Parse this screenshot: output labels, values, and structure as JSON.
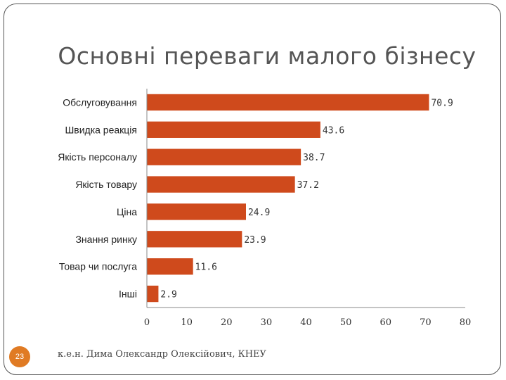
{
  "slide": {
    "title": "Основні переваги малого бізнесу",
    "page_number": "23",
    "footer": "к.е.н. Дима Олександр Олексійович, КНЕУ"
  },
  "colors": {
    "bar": "#cf4a1c",
    "axis": "#888888"
  },
  "chart_data": {
    "type": "bar",
    "orientation": "horizontal",
    "title": "",
    "categories": [
      "Обслуговування",
      "Швидка реакція",
      "Якість персоналу",
      "Якість товару",
      "Ціна",
      "Знання ринку",
      "Товар чи послуга",
      "Інші"
    ],
    "values": [
      70.9,
      43.6,
      38.7,
      37.2,
      24.9,
      23.9,
      11.6,
      2.9
    ],
    "value_labels": [
      "70.9",
      "43.6",
      "38.7",
      "37.2",
      "24.9",
      "23.9",
      "11.6",
      "2.9"
    ],
    "xlim": [
      0,
      80
    ],
    "xticks": [
      "0",
      "10",
      "20",
      "30",
      "40",
      "50",
      "60",
      "70",
      "80"
    ],
    "grid": false,
    "legend": "none"
  }
}
